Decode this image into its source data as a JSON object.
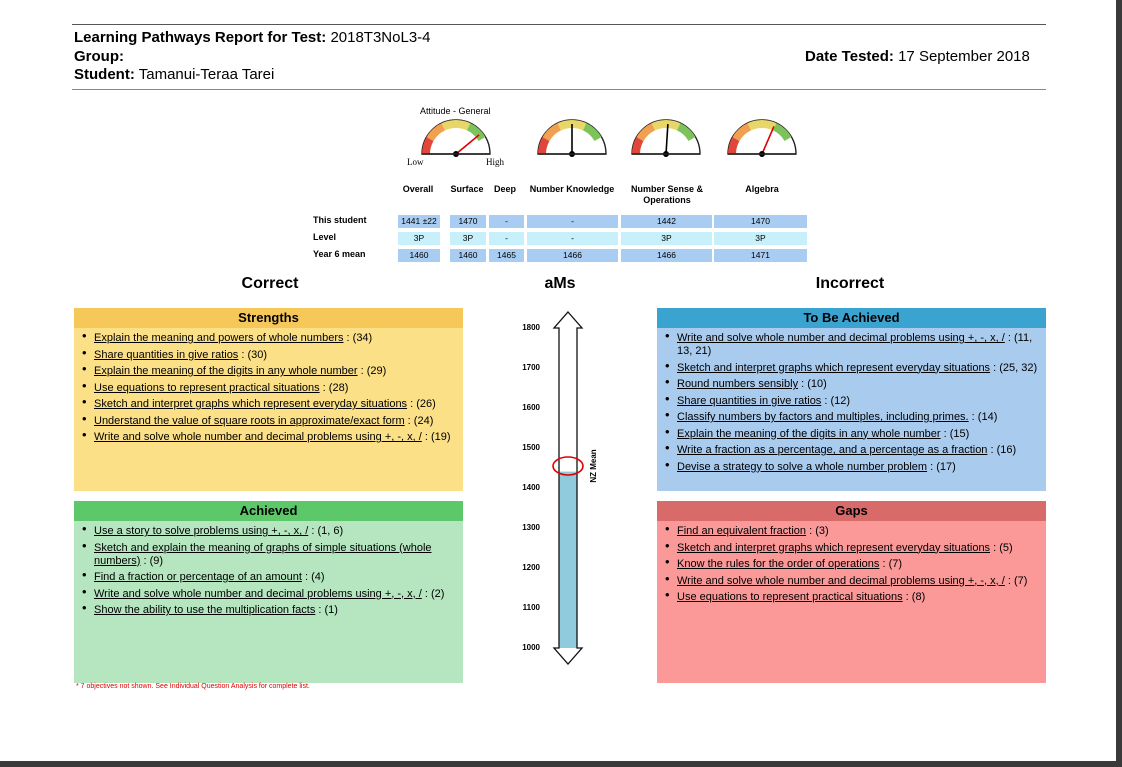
{
  "header": {
    "report_label": "Learning Pathways Report for Test:",
    "report_value": "2018T3NoL3-4",
    "group_label": "Group:",
    "group_value": "",
    "student_label": "Student:",
    "student_value": "Tamanui-Teraa Tarei",
    "date_label": "Date Tested:",
    "date_value": "17 September 2018"
  },
  "gauges": {
    "title": "Attitude - General",
    "low": "Low",
    "high": "High",
    "levels": [
      0.78,
      0.5,
      0.52,
      0.63
    ],
    "colors": {
      "red": "#e0463a",
      "orange": "#f0a050",
      "yellow": "#e8d668",
      "green": "#7cc45a",
      "needle": "#e00000"
    }
  },
  "table": {
    "columns": [
      "Overall",
      "Surface",
      "Deep",
      "Number Knowledge",
      "Number Sense & Operations",
      "Algebra"
    ],
    "rows": [
      {
        "label": "This student",
        "values": [
          "1441 ±22",
          "1470",
          "-",
          "-",
          "1442",
          "1470"
        ]
      },
      {
        "label": "Level",
        "values": [
          "3P",
          "3P",
          "-",
          "-",
          "3P",
          "3P"
        ]
      },
      {
        "label": "Year 6 mean",
        "values": [
          "1460",
          "1460",
          "1465",
          "1466",
          "1466",
          "1471"
        ]
      }
    ]
  },
  "sections": {
    "correct": "Correct",
    "ams": "aMs",
    "incorrect": "Incorrect"
  },
  "strengths": {
    "title": "Strengths",
    "color": "#fbe087",
    "title_color": "#f6c85a",
    "items": [
      {
        "link": "Explain the meaning and powers of whole numbers",
        "count": " : (34)"
      },
      {
        "link": "Share quantities in give ratios",
        "count": " : (30)"
      },
      {
        "link": "Explain the meaning of the digits in any whole number",
        "count": " : (29)"
      },
      {
        "link": "Use equations to represent practical situations",
        "count": " : (28)"
      },
      {
        "link": "Sketch and interpret graphs which represent everyday situations",
        "count": " : (26)"
      },
      {
        "link": "Understand the value of square roots in approximate/exact form",
        "count": " : (24)"
      },
      {
        "link": "Write and solve whole number and decimal problems using +, -, x, /",
        "count": " : (19)"
      }
    ]
  },
  "achieved": {
    "title": "Achieved",
    "color": "#b5e6c0",
    "title_color": "#5cc86a",
    "items": [
      {
        "link": "Use a story to solve problems using +, -, x, /",
        "count": " : (1, 6)"
      },
      {
        "link": "Sketch and explain the meaning of graphs of simple situations (whole numbers)",
        "count": " : (9)"
      },
      {
        "link": "Find a fraction or percentage of an amount",
        "count": " : (4)"
      },
      {
        "link": "Write and solve whole number and decimal problems using +, -, x, /",
        "count": " : (2)"
      },
      {
        "link": "Show the ability to use the multiplication facts",
        "count": " : (1)"
      }
    ]
  },
  "to_be_achieved": {
    "title": "To Be Achieved",
    "color": "#a9cbee",
    "title_color": "#3aa3d0",
    "items": [
      {
        "link": "Write and solve whole number and decimal problems using +, -, x, /",
        "count": " : (11, 13, 21)"
      },
      {
        "link": "Sketch and interpret graphs which represent everyday situations",
        "count": " : (25, 32)"
      },
      {
        "link": "Round numbers sensibly",
        "count": " : (10)"
      },
      {
        "link": "Share quantities in give ratios",
        "count": " : (12)"
      },
      {
        "link": "Classify numbers by factors and multiples, including primes.",
        "count": " : (14)"
      },
      {
        "link": "Explain the meaning of the digits in any whole number",
        "count": " : (15)"
      },
      {
        "link": "Write a fraction as a percentage, and a percentage as a fraction",
        "count": " : (16)"
      },
      {
        "link": "Devise a strategy to solve a whole number problem",
        "count": " : (17)"
      }
    ]
  },
  "gaps": {
    "title": "Gaps",
    "color": "#fb9898",
    "title_color": "#d96a6a",
    "items": [
      {
        "link": "Find an equivalent fraction",
        "count": " : (3)"
      },
      {
        "link": "Sketch and interpret graphs which represent everyday situations",
        "count": " : (5)"
      },
      {
        "link": "Know the rules for the order of operations",
        "count": " : (7)"
      },
      {
        "link": "Write and solve whole number and decimal problems using +, -, x, /",
        "count": " : (7)"
      },
      {
        "link": "Use equations to represent practical situations",
        "count": " : (8)"
      }
    ]
  },
  "scale": {
    "ticks": [
      "1800",
      "1700",
      "1600",
      "1500",
      "1400",
      "1300",
      "1200",
      "1100",
      "1000"
    ],
    "min": 1000,
    "max": 1800,
    "student_value": 1441,
    "mean_value": 1460,
    "mean_label": "NZ Mean",
    "fill_color": "#8fcbdc"
  },
  "footnote": "* 7 objectives not shown. See Individual Question Analysis for complete list."
}
